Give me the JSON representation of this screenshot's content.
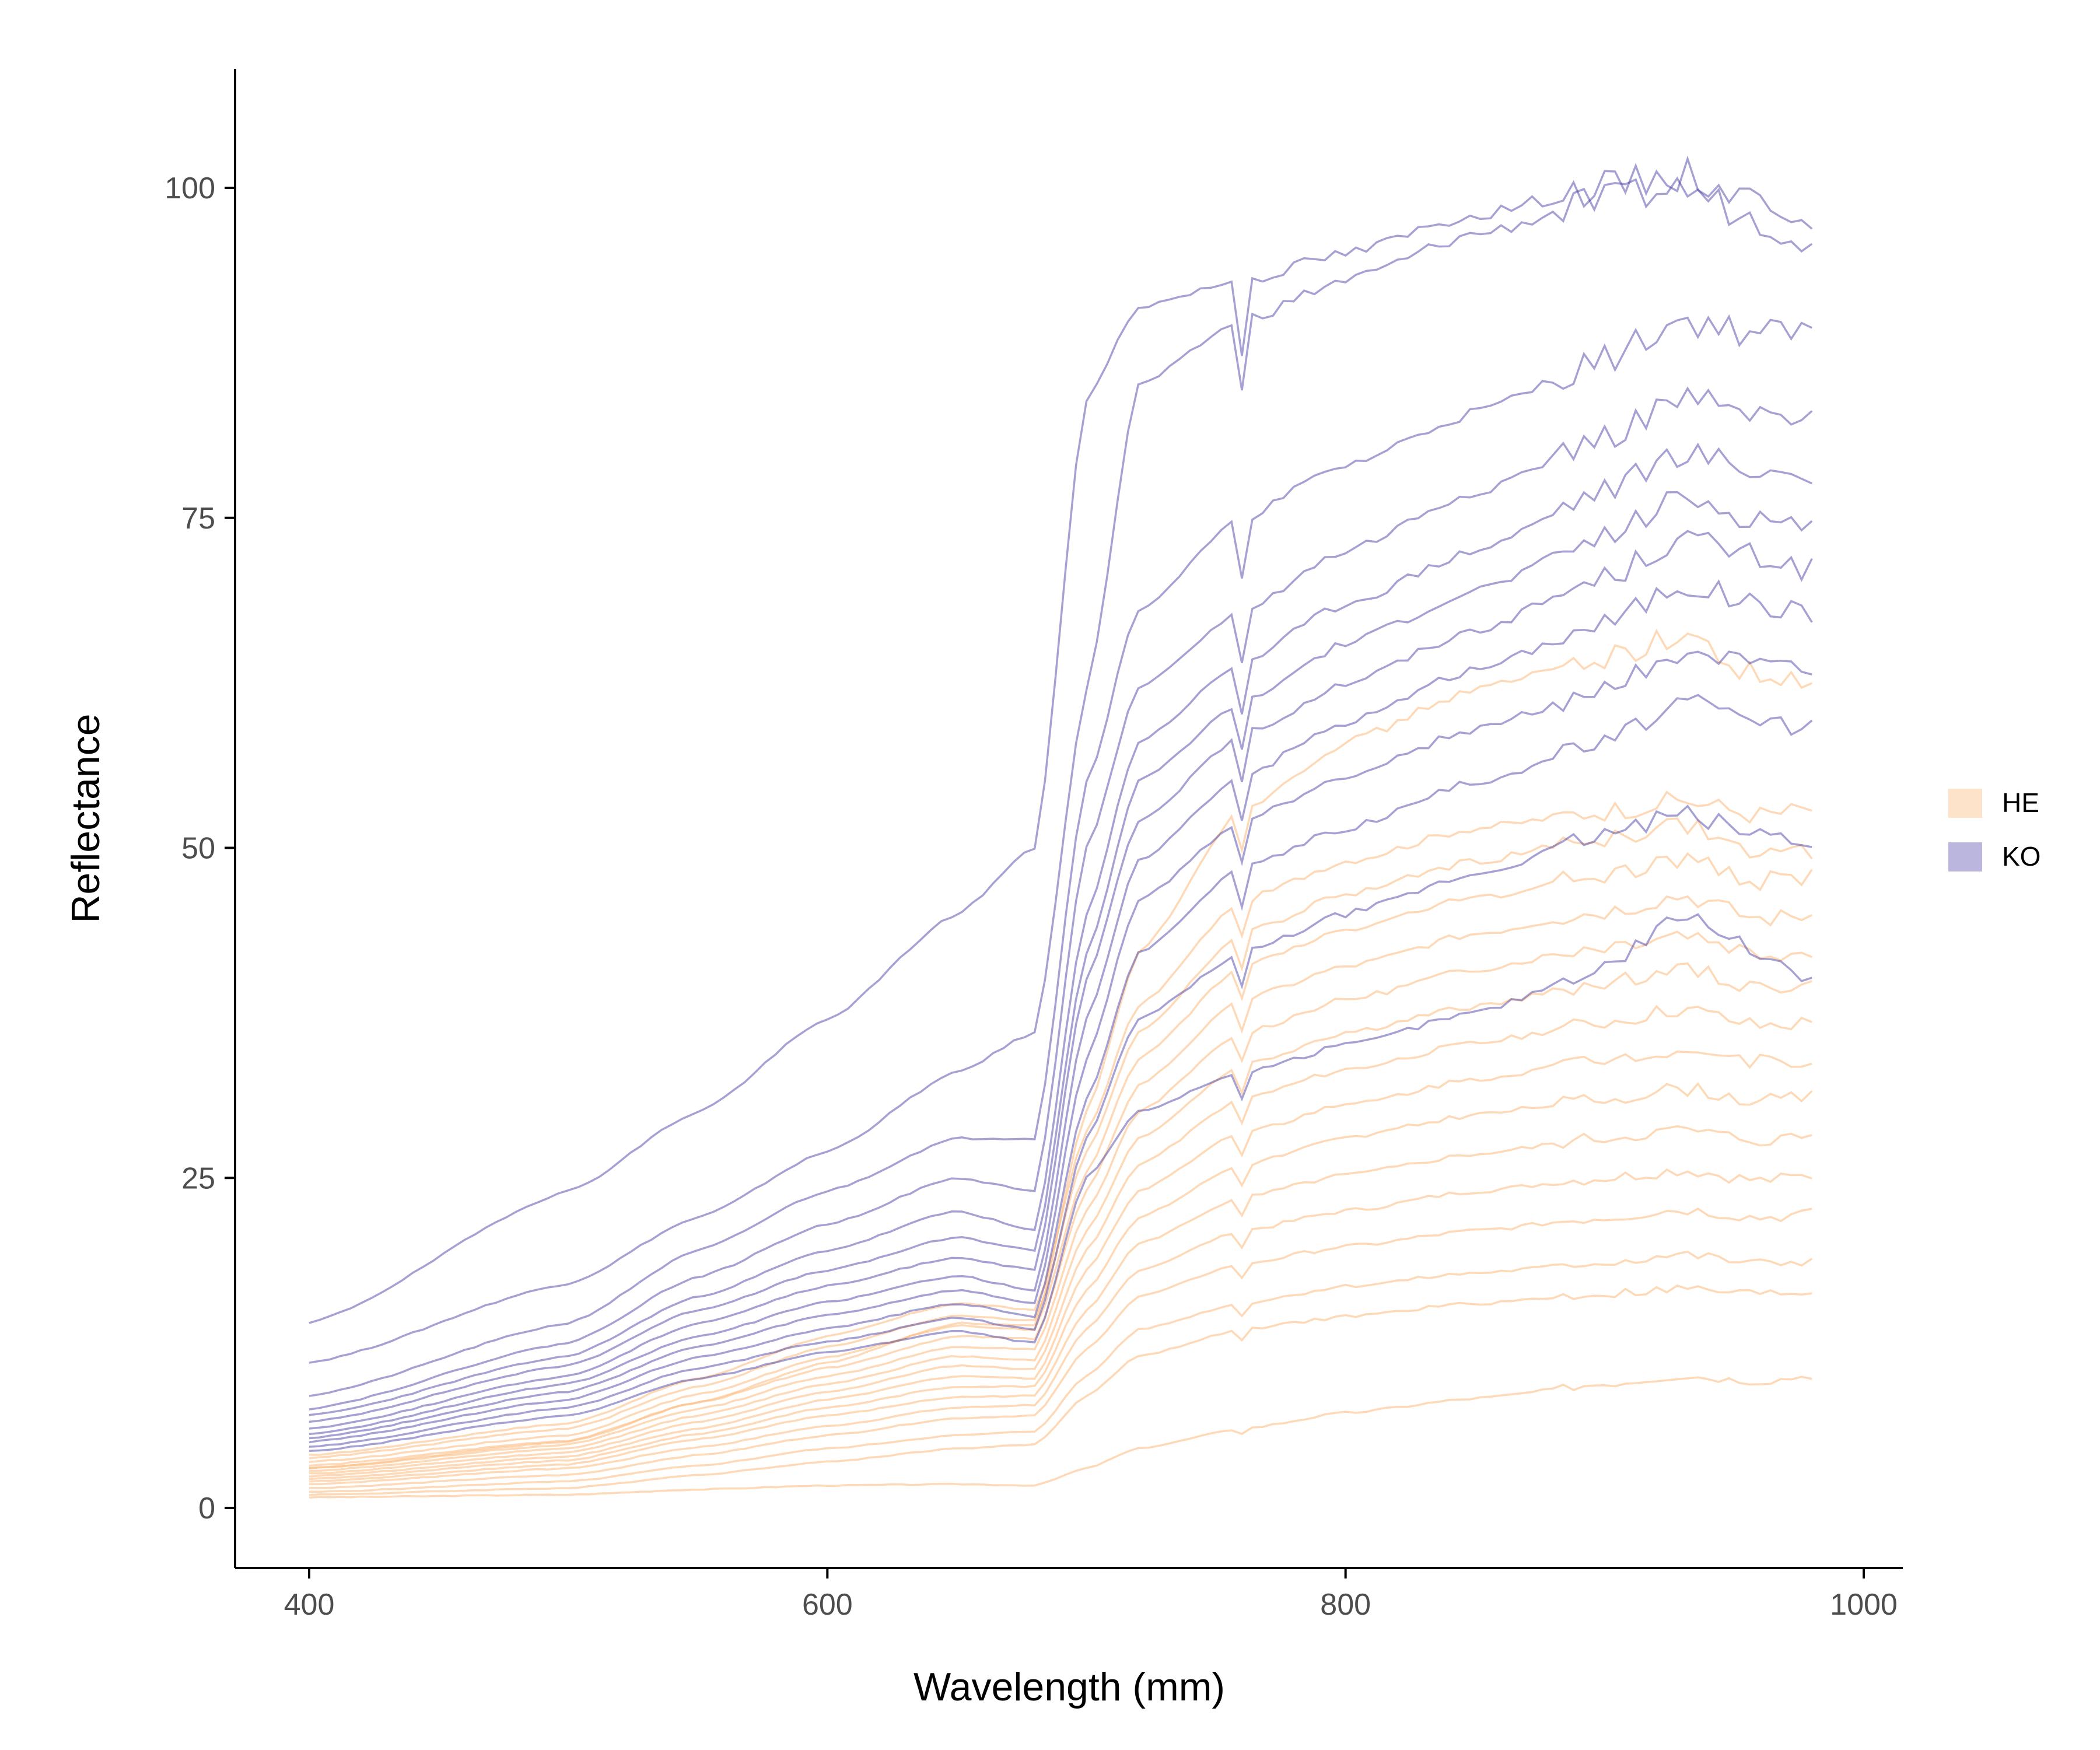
{
  "chart_data": {
    "type": "line",
    "title": "",
    "xlabel": "Wavelength (mm)",
    "ylabel": "Reflectance",
    "xlim": [
      400,
      1000
    ],
    "ylim": [
      0,
      100
    ],
    "x_ticks": [
      400,
      600,
      800,
      1000
    ],
    "y_ticks": [
      0,
      25,
      50,
      75,
      100
    ],
    "x_tick_labels": [
      "400",
      "600",
      "800",
      "1000"
    ],
    "y_tick_labels": [
      "0",
      "25",
      "50",
      "75",
      "100"
    ],
    "grid": false,
    "legend_position": "right",
    "legend": [
      {
        "label": "HE",
        "color": "#fdb97c"
      },
      {
        "label": "KO",
        "color": "#3a2f9e"
      }
    ],
    "x": [
      400,
      500,
      550,
      600,
      650,
      680,
      700,
      720,
      760,
      800,
      850,
      900,
      930,
      960,
      983
    ],
    "series": [
      {
        "group": "HE",
        "color": "#fdb97c",
        "values": [
          0.8,
          1.0,
          1.4,
          1.7,
          1.8,
          1.7,
          3.0,
          4.5,
          6.0,
          7.2,
          8.3,
          9.4,
          10.0,
          9.6,
          10.1
        ]
      },
      {
        "group": "HE",
        "color": "#fdb97c",
        "values": [
          1.0,
          1.5,
          2.5,
          3.5,
          4.5,
          4.8,
          8.5,
          11.5,
          13.5,
          14.5,
          15.5,
          16.2,
          16.6,
          16.2,
          16.4
        ]
      },
      {
        "group": "HE",
        "color": "#fdb97c",
        "values": [
          1.2,
          2.0,
          3.2,
          4.5,
          5.5,
          5.8,
          10.0,
          13.5,
          15.5,
          16.8,
          17.8,
          18.6,
          19.2,
          18.5,
          18.8
        ]
      },
      {
        "group": "HE",
        "color": "#fdb97c",
        "values": [
          1.5,
          2.5,
          4.0,
          5.5,
          6.8,
          7.0,
          12.0,
          16.0,
          18.5,
          19.8,
          21.0,
          22.0,
          22.6,
          22.0,
          22.3
        ]
      },
      {
        "group": "HE",
        "color": "#fdb97c",
        "values": [
          1.8,
          3.0,
          4.6,
          6.2,
          7.6,
          7.8,
          13.5,
          18.0,
          21.0,
          22.5,
          24.0,
          25.0,
          25.6,
          24.8,
          25.2
        ]
      },
      {
        "group": "HE",
        "color": "#fdb97c",
        "values": [
          2.0,
          3.3,
          5.2,
          7.0,
          8.4,
          8.5,
          15.0,
          20.0,
          23.5,
          25.2,
          26.8,
          28.0,
          28.6,
          27.8,
          28.2
        ]
      },
      {
        "group": "HE",
        "color": "#fdb97c",
        "values": [
          2.2,
          3.6,
          5.6,
          7.6,
          9.2,
          9.2,
          16.5,
          22.0,
          26.0,
          28.0,
          29.8,
          31.0,
          31.8,
          30.8,
          31.2
        ]
      },
      {
        "group": "HE",
        "color": "#fdb97c",
        "values": [
          2.4,
          3.9,
          6.0,
          8.2,
          10.0,
          9.8,
          18.0,
          24.0,
          28.5,
          30.5,
          32.5,
          34.0,
          34.8,
          33.8,
          34.0
        ]
      },
      {
        "group": "HE",
        "color": "#fdb97c",
        "values": [
          2.6,
          4.2,
          6.5,
          8.8,
          10.8,
          10.5,
          19.5,
          26.0,
          31.0,
          33.2,
          35.2,
          36.8,
          37.8,
          36.5,
          36.8
        ]
      },
      {
        "group": "HE",
        "color": "#fdb97c",
        "values": [
          2.8,
          4.5,
          7.0,
          9.4,
          11.5,
          11.2,
          21.0,
          28.0,
          33.5,
          36.0,
          38.0,
          39.8,
          40.8,
          39.4,
          39.5
        ]
      },
      {
        "group": "HE",
        "color": "#fdb97c",
        "values": [
          3.0,
          4.8,
          7.5,
          10.0,
          12.2,
          12.0,
          22.5,
          30.0,
          36.0,
          38.5,
          40.8,
          42.6,
          43.6,
          42.0,
          42.2
        ]
      },
      {
        "group": "HE",
        "color": "#fdb97c",
        "values": [
          3.2,
          5.1,
          8.0,
          10.6,
          13.0,
          12.8,
          24.0,
          32.0,
          38.5,
          41.0,
          43.5,
          45.2,
          46.4,
          44.6,
          45.0
        ]
      },
      {
        "group": "HE",
        "color": "#fdb97c",
        "values": [
          3.5,
          5.5,
          8.6,
          11.4,
          13.8,
          13.5,
          25.5,
          34.0,
          41.0,
          43.8,
          46.2,
          48.0,
          49.2,
          47.5,
          48.0
        ]
      },
      {
        "group": "HE",
        "color": "#fdb97c",
        "values": [
          3.8,
          6.0,
          9.2,
          12.2,
          14.6,
          14.2,
          27.0,
          36.0,
          43.5,
          46.5,
          49.0,
          50.8,
          51.8,
          49.5,
          49.8
        ]
      },
      {
        "group": "HE",
        "color": "#fdb97c",
        "values": [
          4.0,
          6.4,
          9.8,
          13.0,
          15.5,
          15.0,
          28.5,
          38.0,
          46.0,
          49.0,
          51.5,
          52.8,
          53.6,
          52.5,
          53.0
        ]
      },
      {
        "group": "HE",
        "color": "#fdb97c",
        "values": [
          3.0,
          5.0,
          8.0,
          11.0,
          14.0,
          13.8,
          30.0,
          42.0,
          53.0,
          58.0,
          62.0,
          64.5,
          66.0,
          63.0,
          62.0
        ]
      },
      {
        "group": "KO",
        "color": "#3a2f9e",
        "values": [
          14.0,
          24.0,
          30.0,
          37.0,
          45.0,
          50.0,
          84.0,
          91.0,
          93.0,
          95.0,
          98.0,
          100.0,
          101.0,
          99.0,
          98.0
        ]
      },
      {
        "group": "KO",
        "color": "#3a2f9e",
        "values": [
          11.0,
          17.0,
          22.0,
          27.0,
          33.0,
          36.0,
          62.0,
          85.0,
          90.0,
          93.0,
          96.5,
          99.0,
          100.0,
          97.5,
          96.0
        ]
      },
      {
        "group": "KO",
        "color": "#3a2f9e",
        "values": [
          8.5,
          14.0,
          19.5,
          24.0,
          28.0,
          28.0,
          55.0,
          68.0,
          75.0,
          79.0,
          83.0,
          87.0,
          90.0,
          89.0,
          89.0
        ]
      },
      {
        "group": "KO",
        "color": "#3a2f9e",
        "values": [
          7.5,
          12.5,
          17.5,
          21.5,
          25.0,
          24.0,
          50.0,
          62.0,
          68.0,
          72.5,
          77.0,
          81.0,
          84.0,
          82.5,
          82.0
        ]
      },
      {
        "group": "KO",
        "color": "#3a2f9e",
        "values": [
          7.0,
          11.5,
          16.0,
          19.5,
          22.5,
          21.0,
          45.0,
          58.0,
          64.0,
          68.5,
          72.5,
          77.0,
          80.0,
          78.5,
          78.0
        ]
      },
      {
        "group": "KO",
        "color": "#3a2f9e",
        "values": [
          6.5,
          10.8,
          15.0,
          18.0,
          20.5,
          19.5,
          42.0,
          55.0,
          61.0,
          65.5,
          69.5,
          73.5,
          76.5,
          75.0,
          74.5
        ]
      },
      {
        "group": "KO",
        "color": "#3a2f9e",
        "values": [
          6.0,
          10.0,
          14.0,
          16.8,
          19.0,
          18.0,
          40.0,
          52.0,
          58.5,
          62.5,
          66.5,
          70.5,
          73.5,
          72.0,
          71.0
        ]
      },
      {
        "group": "KO",
        "color": "#3a2f9e",
        "values": [
          5.6,
          9.4,
          13.0,
          15.6,
          17.6,
          16.5,
          37.0,
          49.0,
          55.5,
          59.5,
          63.5,
          67.0,
          70.0,
          68.5,
          67.5
        ]
      },
      {
        "group": "KO",
        "color": "#3a2f9e",
        "values": [
          5.3,
          8.8,
          12.2,
          14.6,
          16.5,
          15.5,
          34.0,
          46.0,
          52.0,
          55.5,
          59.0,
          62.0,
          65.0,
          63.5,
          63.0
        ]
      },
      {
        "group": "KO",
        "color": "#3a2f9e",
        "values": [
          5.0,
          8.2,
          11.4,
          13.6,
          15.5,
          14.5,
          31.0,
          42.0,
          48.5,
          51.5,
          55.0,
          58.0,
          61.0,
          59.5,
          59.0
        ]
      },
      {
        "group": "KO",
        "color": "#3a2f9e",
        "values": [
          4.6,
          7.6,
          10.6,
          12.6,
          14.4,
          13.5,
          28.0,
          37.0,
          42.0,
          45.0,
          48.0,
          51.0,
          52.5,
          51.0,
          50.5
        ]
      },
      {
        "group": "KO",
        "color": "#3a2f9e",
        "values": [
          4.3,
          7.0,
          9.8,
          11.8,
          13.4,
          12.5,
          25.0,
          30.0,
          33.0,
          35.0,
          37.5,
          41.0,
          45.0,
          42.0,
          40.0
        ]
      }
    ]
  }
}
